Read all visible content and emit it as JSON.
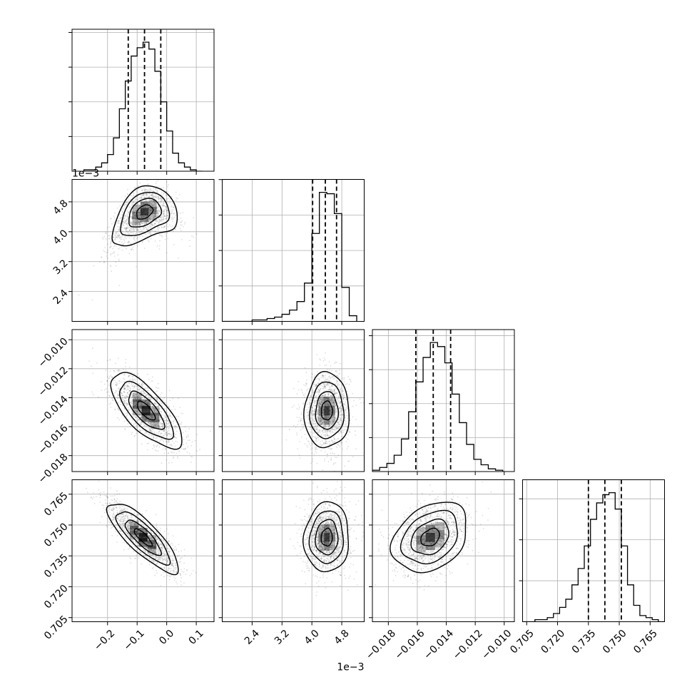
{
  "chart_data": {
    "type": "corner",
    "parameters": 4,
    "axes": [
      {
        "lim": [
          -0.32,
          0.16
        ],
        "ticks": [
          -0.2,
          -0.1,
          0.0,
          0.1
        ],
        "tick_labels": [
          "−0.2",
          "−0.1",
          "0.0",
          "0.1"
        ],
        "offset": ""
      },
      {
        "lim": [
          1.6,
          5.4
        ],
        "ticks": [
          2.4,
          3.2,
          4.0,
          4.8
        ],
        "tick_labels": [
          "2.4",
          "3.2",
          "4.0",
          "4.8"
        ],
        "offset": "1e−3"
      },
      {
        "lim": [
          -0.0191,
          -0.0093
        ],
        "ticks": [
          -0.018,
          -0.016,
          -0.014,
          -0.012,
          -0.01
        ],
        "tick_labels": [
          "−0.018",
          "−0.016",
          "−0.014",
          "−0.012",
          "−0.010"
        ],
        "offset": ""
      },
      {
        "lim": [
          0.703,
          0.772
        ],
        "ticks": [
          0.705,
          0.72,
          0.735,
          0.75,
          0.765
        ],
        "tick_labels": [
          "0.705",
          "0.720",
          "0.735",
          "0.750",
          "0.765"
        ],
        "offset": ""
      }
    ],
    "quantiles": [
      [
        -0.13,
        -0.075,
        -0.02
      ],
      [
        4.02,
        4.36,
        4.66
      ],
      [
        -0.0161,
        -0.0149,
        -0.0137
      ],
      [
        0.735,
        0.743,
        0.751
      ]
    ],
    "histograms": [
      {
        "edges": [
          -0.28,
          -0.26,
          -0.24,
          -0.22,
          -0.2,
          -0.18,
          -0.16,
          -0.14,
          -0.12,
          -0.1,
          -0.08,
          -0.06,
          -0.04,
          -0.02,
          0.0,
          0.02,
          0.04,
          0.06,
          0.08,
          0.1,
          0.12
        ],
        "counts": [
          1,
          1,
          3,
          6,
          12,
          24,
          45,
          65,
          83,
          89,
          93,
          88,
          72,
          50,
          29,
          13,
          6,
          3,
          1,
          0
        ]
      },
      {
        "edges": [
          1.6,
          1.8,
          2.0,
          2.2,
          2.4,
          2.6,
          2.8,
          3.0,
          3.2,
          3.4,
          3.6,
          3.8,
          4.0,
          4.2,
          4.4,
          4.6,
          4.8,
          5.0,
          5.2
        ],
        "counts": [
          0,
          0,
          0,
          0,
          1,
          1,
          2,
          3,
          5,
          8,
          14,
          27,
          62,
          91,
          90,
          76,
          24,
          4
        ]
      },
      {
        "edges": [
          -0.0196,
          -0.0191,
          -0.0186,
          -0.0181,
          -0.0176,
          -0.0171,
          -0.0166,
          -0.0161,
          -0.0156,
          -0.0151,
          -0.0146,
          -0.0141,
          -0.0136,
          -0.0131,
          -0.0126,
          -0.0121,
          -0.0116,
          -0.0111,
          -0.0106,
          -0.0101
        ],
        "counts": [
          0,
          1,
          3,
          6,
          12,
          24,
          44,
          66,
          84,
          95,
          92,
          80,
          57,
          36,
          20,
          9,
          5,
          2,
          1
        ]
      },
      {
        "edges": [
          0.703,
          0.706,
          0.709,
          0.712,
          0.715,
          0.718,
          0.721,
          0.724,
          0.727,
          0.73,
          0.733,
          0.736,
          0.739,
          0.742,
          0.745,
          0.748,
          0.751,
          0.754,
          0.757,
          0.76,
          0.763,
          0.766,
          0.769,
          0.772
        ],
        "counts": [
          0,
          0,
          1,
          1,
          2,
          4,
          7,
          11,
          18,
          26,
          37,
          50,
          58,
          62,
          63,
          55,
          37,
          18,
          8,
          3,
          2,
          1,
          0
        ]
      }
    ],
    "pairs": [
      {
        "row": 1,
        "col": 0,
        "mean": [
          -0.075,
          4.42
        ],
        "sd": [
          0.055,
          0.38
        ],
        "corr": 0.35,
        "bend": -0.6
      },
      {
        "row": 2,
        "col": 0,
        "mean": [
          -0.07,
          -0.0149
        ],
        "sd": [
          0.06,
          0.0013
        ],
        "corr": -0.72,
        "bend": 0.0
      },
      {
        "row": 2,
        "col": 1,
        "mean": [
          4.4,
          -0.0149
        ],
        "sd": [
          0.3,
          0.0013
        ],
        "corr": 0.02,
        "bend": 0.0
      },
      {
        "row": 3,
        "col": 0,
        "mean": [
          -0.08,
          0.744
        ],
        "sd": [
          0.06,
          0.0085
        ],
        "corr": -0.82,
        "bend": 0.0
      },
      {
        "row": 3,
        "col": 1,
        "mean": [
          4.4,
          0.744
        ],
        "sd": [
          0.3,
          0.0085
        ],
        "corr": 0.05,
        "bend": 0.0
      },
      {
        "row": 3,
        "col": 2,
        "mean": [
          -0.0151,
          0.744
        ],
        "sd": [
          0.0013,
          0.0085
        ],
        "corr": 0.3,
        "bend": 0.0
      }
    ],
    "contour_levels_sigma": [
      0.5,
      1.0,
      1.5,
      2.0
    ],
    "grid": true,
    "colors": {
      "lines": "#000000",
      "grid": "#b0b0b0",
      "points": "#808080"
    }
  }
}
